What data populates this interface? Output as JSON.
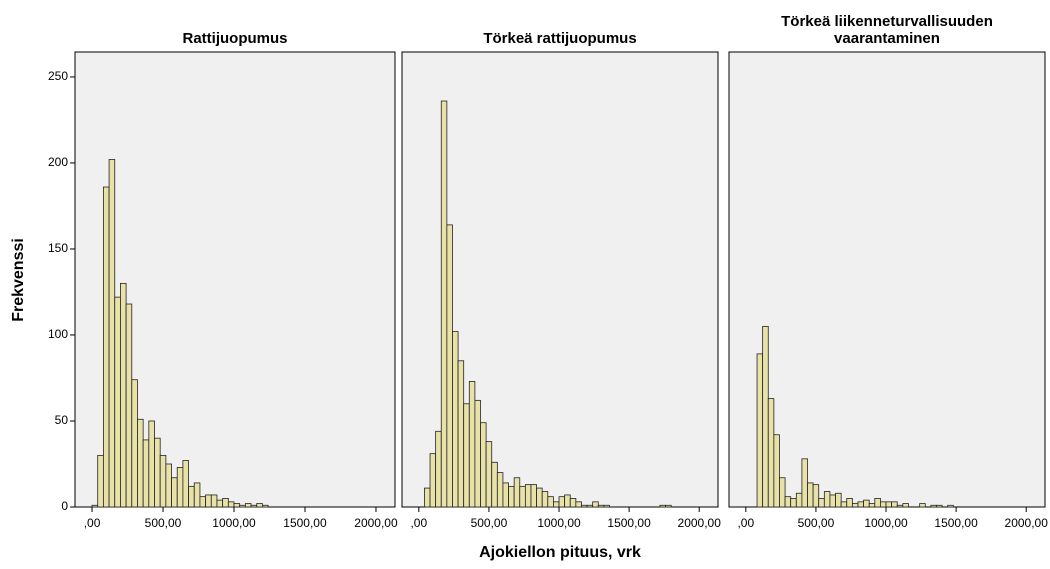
{
  "xlabel": "Ajokiellon pituus, vrk",
  "ylabel": "Frekvenssi",
  "chart_data": [
    {
      "type": "histogram",
      "title": "Rattijuopumus",
      "color": "#e8e2a8",
      "bins": [
        0,
        40,
        80,
        120,
        160,
        200,
        240,
        280,
        320,
        360,
        400,
        440,
        480,
        520,
        560,
        600,
        640,
        680,
        720,
        760,
        800,
        840,
        880,
        920,
        960,
        1000,
        1040,
        1080,
        1120,
        1160,
        1200,
        1240,
        1280,
        1320,
        1360,
        1400,
        1440,
        1480,
        1520,
        1560,
        1600,
        1640,
        1680,
        1720,
        1760,
        1800,
        1840,
        1880,
        1920,
        1960,
        2000
      ],
      "values": [
        1,
        30,
        186,
        202,
        122,
        130,
        118,
        74,
        51,
        39,
        50,
        40,
        30,
        25,
        17,
        23,
        27,
        12,
        14,
        6,
        7,
        7,
        4,
        5,
        3,
        2,
        1,
        2,
        1,
        2,
        1,
        0,
        0,
        0,
        0,
        0,
        0,
        0,
        0,
        0,
        0,
        0,
        0,
        0,
        0,
        0,
        0,
        0,
        0,
        0
      ],
      "xlim": [
        -120,
        2134
      ],
      "xticks": [
        {
          "value": 0,
          "label": ",00"
        },
        {
          "value": 500,
          "label": "500,00"
        },
        {
          "value": 1000,
          "label": "1000,00"
        },
        {
          "value": 1500,
          "label": "1500,00"
        },
        {
          "value": 2000,
          "label": "2000,00"
        }
      ],
      "ylim": [
        0,
        264.5
      ],
      "yticks": [
        0,
        50,
        100,
        150,
        200,
        250
      ]
    },
    {
      "type": "histogram",
      "title": "Törkeä rattijuopumus",
      "color": "#e8e2a8",
      "bins": [
        0,
        40,
        80,
        120,
        160,
        200,
        240,
        280,
        320,
        360,
        400,
        440,
        480,
        520,
        560,
        600,
        640,
        680,
        720,
        760,
        800,
        840,
        880,
        920,
        960,
        1000,
        1040,
        1080,
        1120,
        1160,
        1200,
        1240,
        1280,
        1320,
        1360,
        1400,
        1440,
        1480,
        1520,
        1560,
        1600,
        1640,
        1680,
        1720,
        1760,
        1800,
        1840,
        1880,
        1920,
        1960,
        2000
      ],
      "values": [
        0,
        11,
        31,
        44,
        236,
        164,
        102,
        85,
        60,
        73,
        62,
        49,
        38,
        26,
        20,
        14,
        12,
        17,
        12,
        13,
        13,
        11,
        9,
        6,
        3,
        6,
        7,
        5,
        3,
        1,
        1,
        3,
        1,
        1,
        0,
        0,
        0,
        0,
        0,
        0,
        0,
        0,
        0,
        1,
        1,
        0,
        0,
        0,
        0,
        0
      ],
      "xlim": [
        -120,
        2134
      ],
      "xticks": [
        {
          "value": 0,
          "label": ",00"
        },
        {
          "value": 500,
          "label": "500,00"
        },
        {
          "value": 1000,
          "label": "1000,00"
        },
        {
          "value": 1500,
          "label": "1500,00"
        },
        {
          "value": 2000,
          "label": "2000,00"
        }
      ],
      "ylim": [
        0,
        264.5
      ]
    },
    {
      "type": "histogram",
      "title": [
        "Törkeä liikenneturvallisuuden",
        "vaarantaminen"
      ],
      "color": "#e8e2a8",
      "bins": [
        0,
        40,
        80,
        120,
        160,
        200,
        240,
        280,
        320,
        360,
        400,
        440,
        480,
        520,
        560,
        600,
        640,
        680,
        720,
        760,
        800,
        840,
        880,
        920,
        960,
        1000,
        1040,
        1080,
        1120,
        1160,
        1200,
        1240,
        1280,
        1320,
        1360,
        1400,
        1440,
        1480,
        1520,
        1560,
        1600,
        1640,
        1680,
        1720,
        1760,
        1800,
        1840,
        1880,
        1920,
        1960,
        2000
      ],
      "values": [
        0,
        0,
        89,
        105,
        63,
        42,
        17,
        6,
        5,
        8,
        28,
        14,
        13,
        5,
        9,
        7,
        8,
        3,
        5,
        2,
        3,
        4,
        2,
        5,
        3,
        3,
        3,
        1,
        2,
        0,
        0,
        2,
        0,
        1,
        1,
        0,
        1,
        0,
        0,
        0,
        0,
        0,
        0,
        0,
        0,
        0,
        0,
        0,
        0,
        0
      ],
      "xlim": [
        -120,
        2134
      ],
      "xticks": [
        {
          "value": 0,
          "label": ",00"
        },
        {
          "value": 500,
          "label": "500,00"
        },
        {
          "value": 1000,
          "label": "1000,00"
        },
        {
          "value": 1500,
          "label": "1500,00"
        },
        {
          "value": 2000,
          "label": "2000,00"
        }
      ],
      "ylim": [
        0,
        264.5
      ]
    }
  ]
}
